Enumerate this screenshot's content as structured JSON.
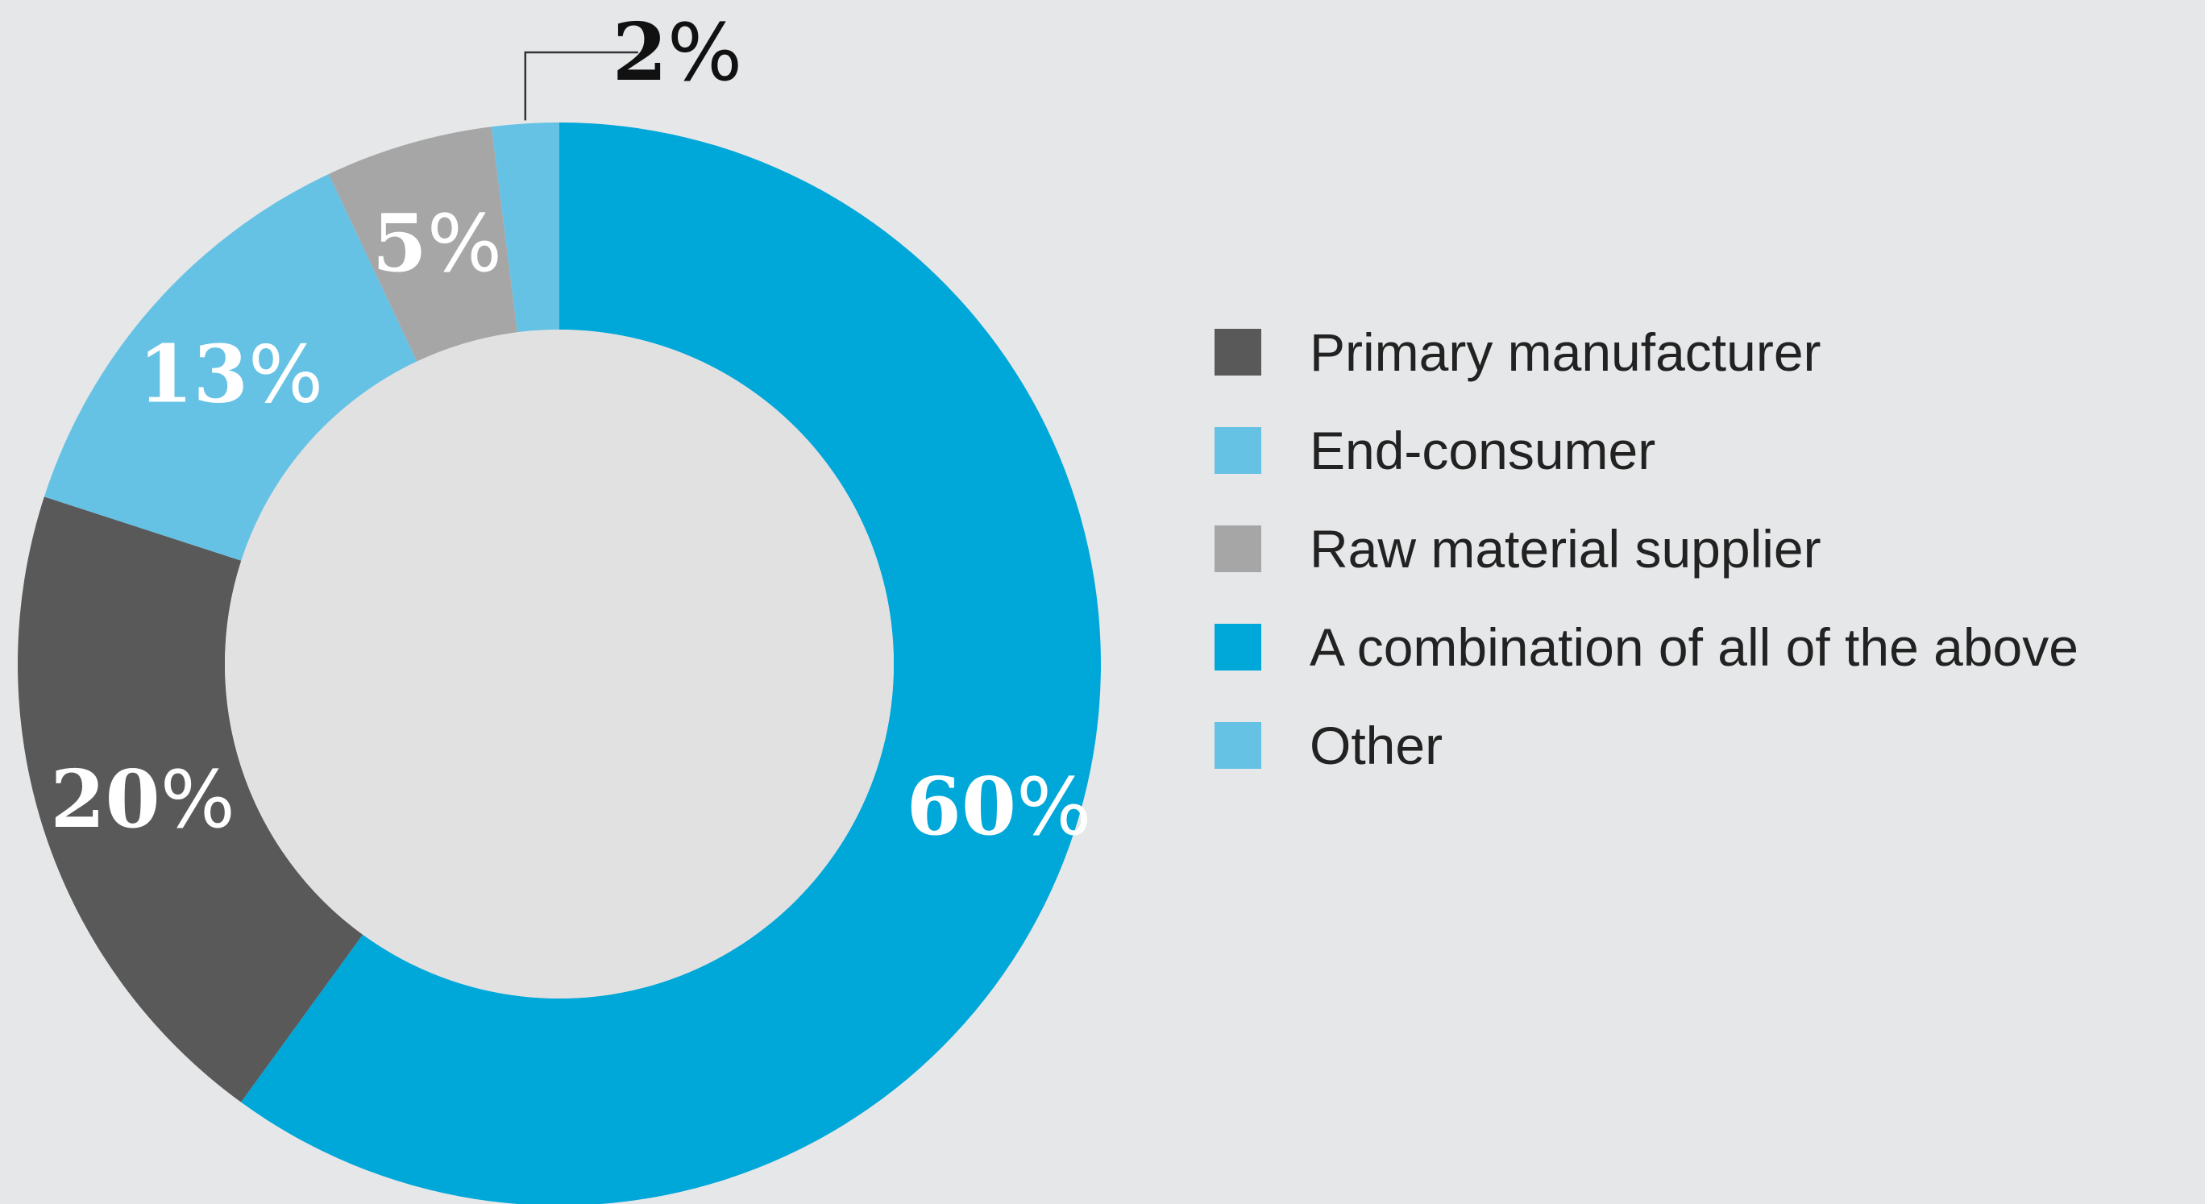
{
  "chart_data": {
    "type": "pie",
    "variant": "donut",
    "title": "",
    "slices": [
      {
        "label": "A combination of all of the above",
        "value": 60,
        "display": "60",
        "color": "#00a7d9"
      },
      {
        "label": "Primary manufacturer",
        "value": 20,
        "display": "20",
        "color": "#595959"
      },
      {
        "label": "End-consumer",
        "value": 13,
        "display": "13",
        "color": "#66c2e5"
      },
      {
        "label": "Raw material supplier",
        "value": 5,
        "display": "5",
        "color": "#a6a6a6"
      },
      {
        "label": "Other",
        "value": 2,
        "display": "2",
        "color": "#66c2e5"
      }
    ],
    "unit_symbol": "%",
    "legend": {
      "placement": "right",
      "entries": [
        {
          "label": "Primary manufacturer",
          "color": "#595959"
        },
        {
          "label": "End-consumer",
          "color": "#66c2e5"
        },
        {
          "label": "Raw material supplier",
          "color": "#a6a6a6"
        },
        {
          "label": "A combination of all of the above",
          "color": "#00a7d9"
        },
        {
          "label": "Other",
          "color": "#66c2e5"
        }
      ]
    },
    "callout_slice": "Other"
  },
  "colors": {
    "background": "#e6e7e8",
    "hole": "#e1e1e1",
    "callout_line": "#333333"
  }
}
